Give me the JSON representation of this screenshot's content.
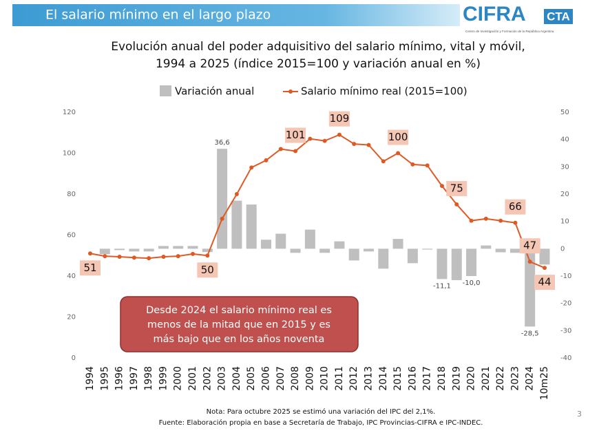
{
  "header": {
    "title": "El salario mínimo en el largo plazo",
    "logo": "CIFRA",
    "logo_suffix": "CTA",
    "logo_subtitle": "Centro de Investigación y Formación de la República Argentina"
  },
  "page_number": "3",
  "chart_data": {
    "type": "bar-line",
    "title": [
      "Evolución anual del poder adquisitivo del salario mínimo, vital y móvil,",
      "1994 a 2025 (índice 2015=100 y variación anual en %)"
    ],
    "categories": [
      "1994",
      "1995",
      "1996",
      "1997",
      "1998",
      "1999",
      "2000",
      "2001",
      "2002",
      "2003",
      "2004",
      "2005",
      "2006",
      "2007",
      "2008",
      "2009",
      "2010",
      "2011",
      "2012",
      "2013",
      "2014",
      "2015",
      "2016",
      "2017",
      "2018",
      "2019",
      "2020",
      "2021",
      "2022",
      "2023",
      "2024",
      "10m25"
    ],
    "series": [
      {
        "name": "Variación anual",
        "type": "bar",
        "axis": "y2",
        "color": "#bfbfbf",
        "values": [
          0,
          -2,
          -0.5,
          -1,
          -1,
          1,
          1,
          1,
          -1.2,
          36.6,
          17.6,
          16.2,
          3.3,
          5.5,
          -1.5,
          7,
          -1.5,
          2.7,
          -4.3,
          -1,
          -7.3,
          3.6,
          -5.3,
          -0.3,
          -11.1,
          -11.5,
          -10.0,
          1.2,
          -1.3,
          -1.5,
          -28.5,
          -5.8
        ],
        "value_labels": [
          null,
          null,
          null,
          null,
          null,
          null,
          null,
          null,
          null,
          "36,6",
          null,
          null,
          null,
          null,
          null,
          null,
          null,
          null,
          null,
          null,
          null,
          null,
          null,
          null,
          "-11,1",
          null,
          "-10,0",
          null,
          null,
          null,
          "-28,5",
          null
        ]
      },
      {
        "name": "Salario mínimo real (2015=100)",
        "type": "line",
        "color": "#de5a24",
        "values": [
          51,
          49.7,
          49.4,
          49,
          48.7,
          49.4,
          49.7,
          50.8,
          50,
          68,
          80,
          93,
          96.5,
          102,
          101,
          107,
          106,
          109,
          104.5,
          104,
          96,
          100,
          94.5,
          94,
          84,
          75,
          67,
          68,
          67,
          66,
          47,
          44
        ],
        "value_labels": [
          "51",
          null,
          null,
          null,
          null,
          null,
          null,
          null,
          "50",
          null,
          null,
          null,
          null,
          null,
          "101",
          null,
          null,
          "109",
          null,
          null,
          null,
          "100",
          null,
          null,
          null,
          "75",
          null,
          null,
          null,
          "66",
          "47",
          "44"
        ]
      }
    ],
    "ylim": [
      0,
      120
    ],
    "yticks": [
      0,
      20,
      40,
      60,
      80,
      100,
      120
    ],
    "y2lim": [
      -40,
      50
    ],
    "y2ticks": [
      -40,
      -30,
      -20,
      -10,
      0,
      10,
      20,
      30,
      40,
      50
    ],
    "legend": "top",
    "annotation": [
      "Desde 2024 el salario mínimo real es",
      "menos de la mitad que en 2015 y es",
      "más bajo que en los años noventa"
    ],
    "notes": [
      "Nota: Para octubre 2025 se estimó una variación del IPC del 2,1%.",
      "Fuente: Elaboración propia en base a Secretaría de Trabajo, IPC Provincias-CIFRA e IPC-INDEC."
    ]
  }
}
